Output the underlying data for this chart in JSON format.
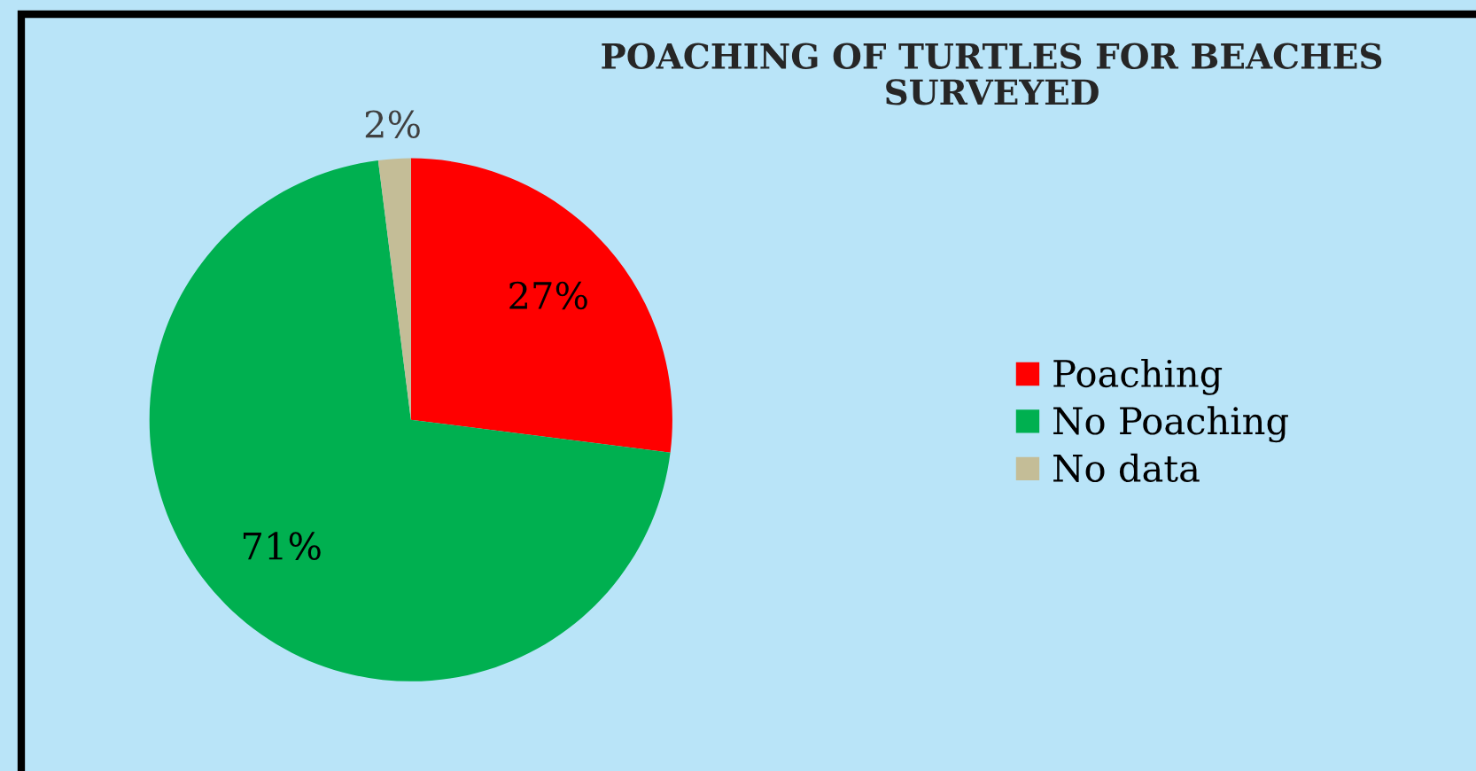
{
  "chart_data": {
    "type": "pie",
    "title": "POACHING OF TURTLES FOR BEACHES\nSURVEYED",
    "categories": [
      "Poaching",
      "No Poaching",
      "No data"
    ],
    "values": [
      27,
      71,
      2
    ],
    "colors": [
      "#ff0000",
      "#00b050",
      "#c4bd97"
    ],
    "value_labels": [
      "27%",
      "71%",
      "2%"
    ],
    "legend": "right"
  }
}
